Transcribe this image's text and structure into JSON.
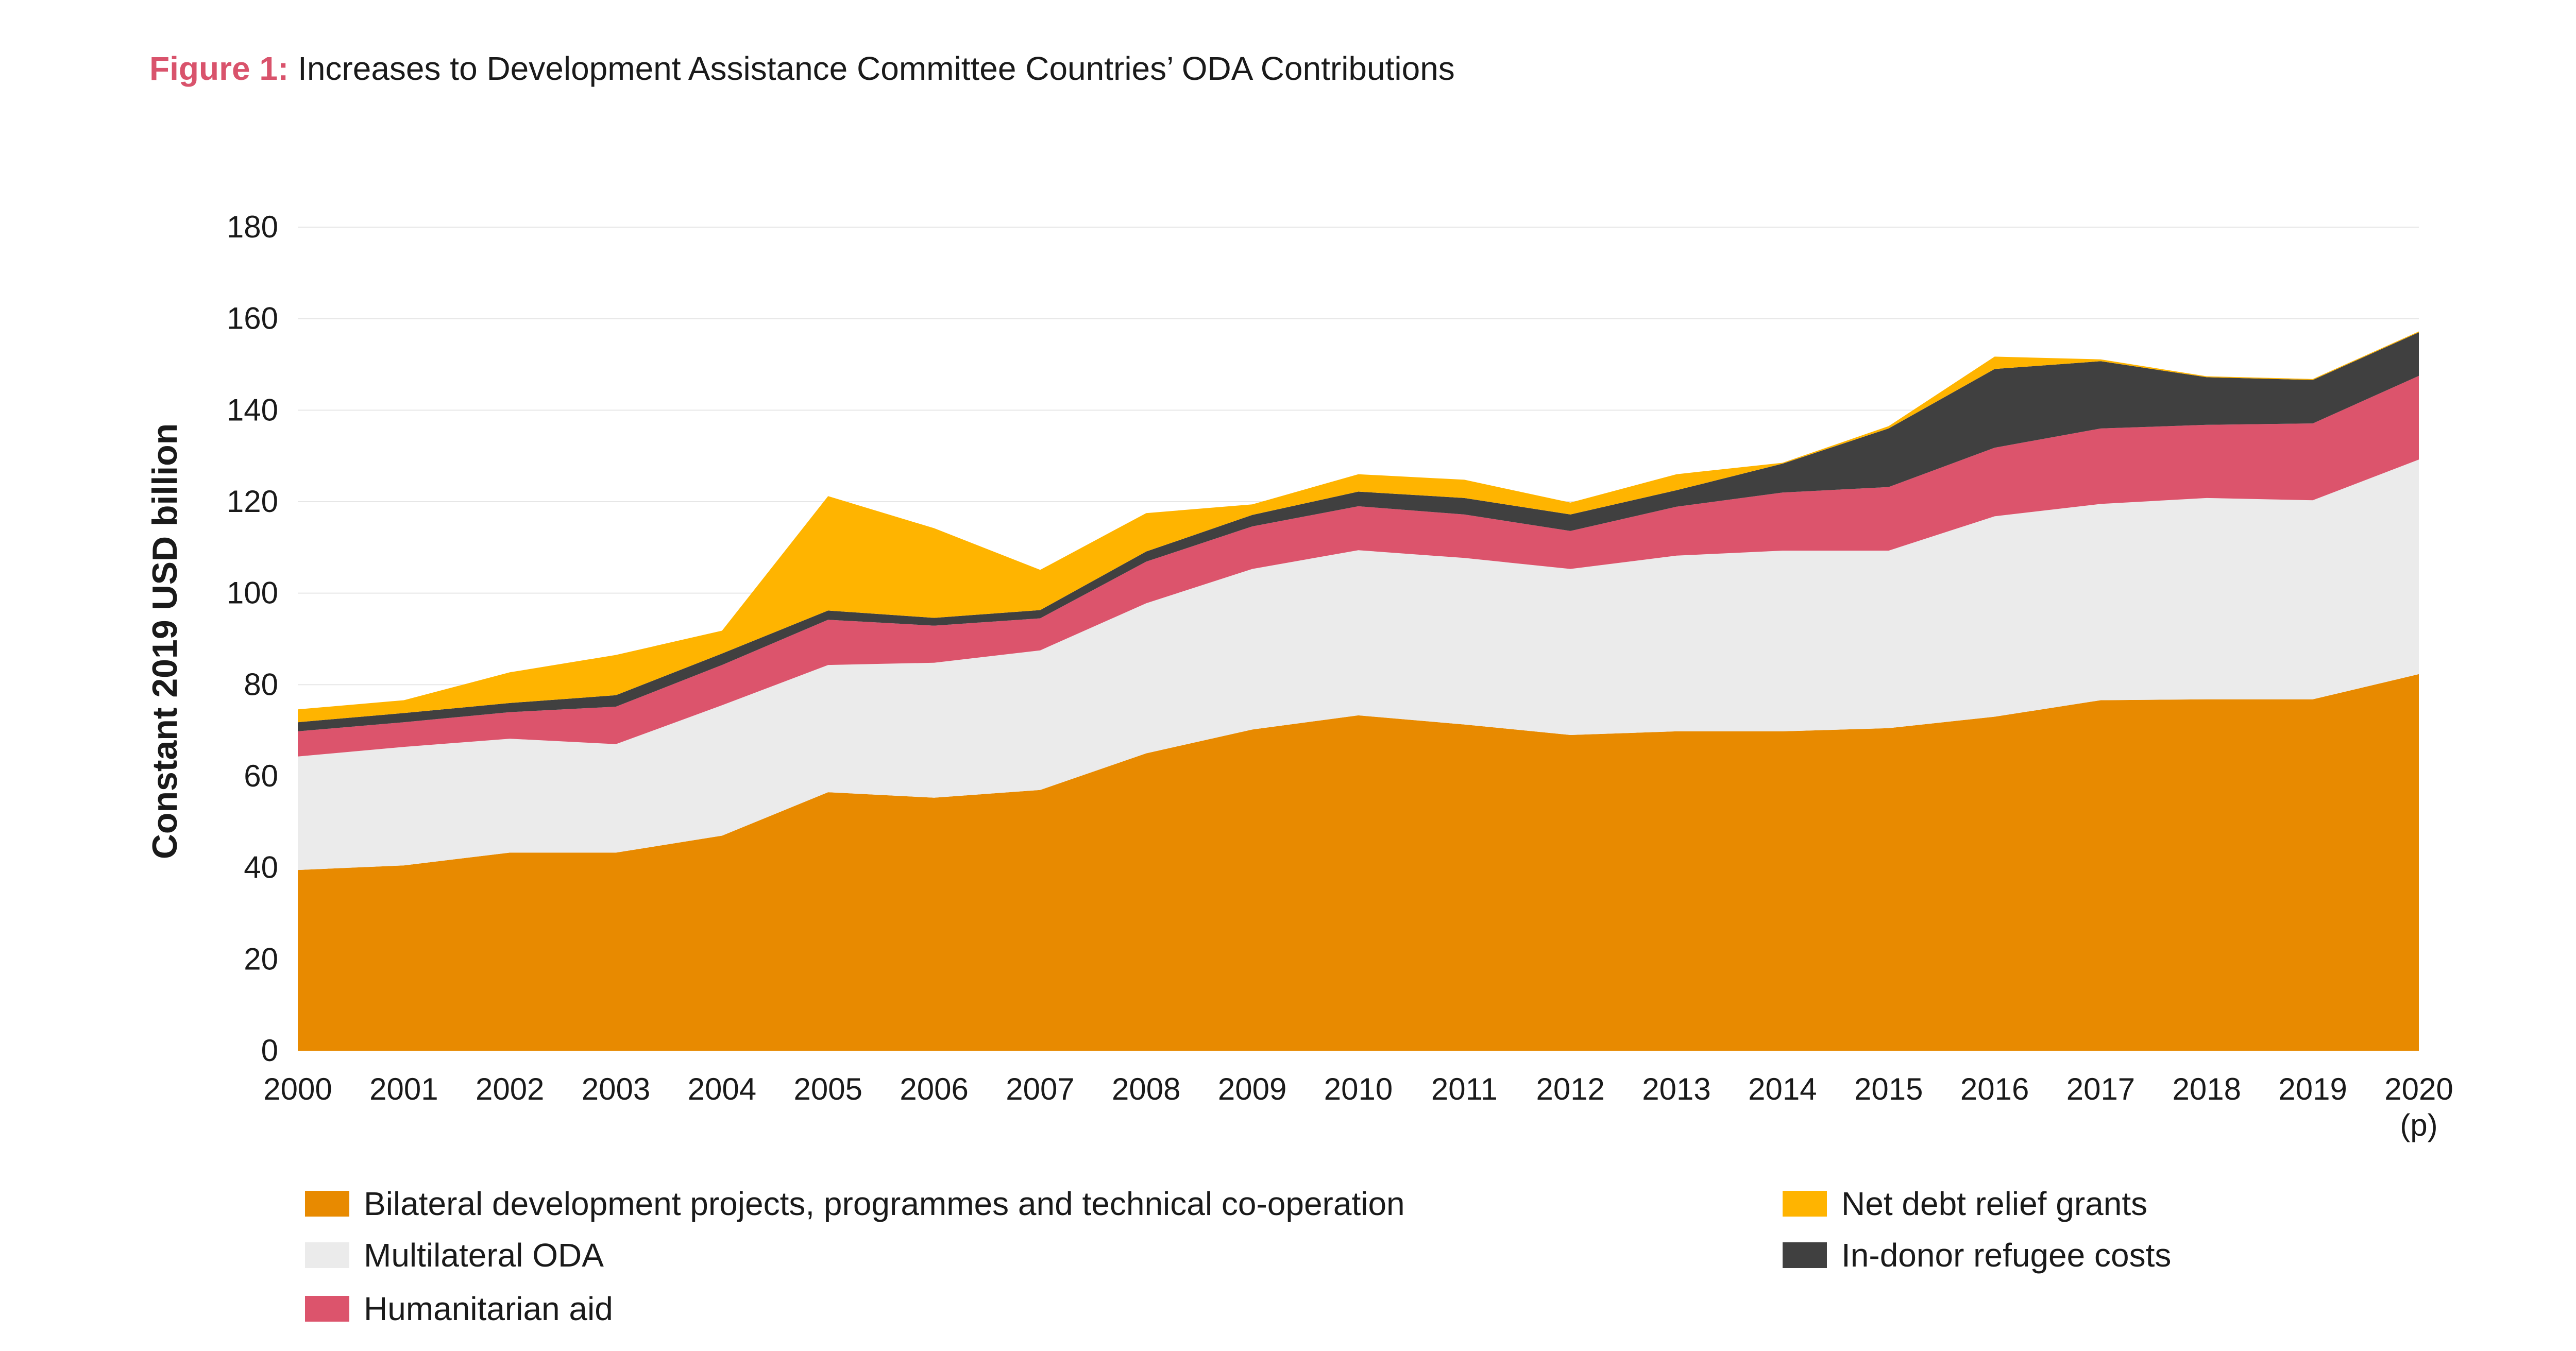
{
  "figure": {
    "label": "Figure 1:",
    "caption": "Increases to Development Assistance Committee Countries’ ODA Contributions"
  },
  "chart_data": {
    "type": "area",
    "stacked": true,
    "ylabel": "Constant 2019 USD billion",
    "xlabel": "",
    "ylim": [
      0,
      180
    ],
    "yticks": [
      0,
      20,
      40,
      60,
      80,
      100,
      120,
      140,
      160,
      180
    ],
    "grid": true,
    "categories": [
      "2000",
      "2001",
      "2002",
      "2003",
      "2004",
      "2005",
      "2006",
      "2007",
      "2008",
      "2009",
      "2010",
      "2011",
      "2012",
      "2013",
      "2014",
      "2015",
      "2016",
      "2017",
      "2018",
      "2019",
      "2020"
    ],
    "category_sublabels": {
      "2020": "(p)"
    },
    "series": [
      {
        "name": "Bilateral development projects, programmes and technical co-operation",
        "color": "#e88a00",
        "values": [
          39.5,
          40.5,
          43.3,
          43.3,
          47,
          56.5,
          55.3,
          57,
          65,
          70.2,
          73.3,
          71.3,
          69,
          69.8,
          69.8,
          70.5,
          73,
          76.6,
          76.8,
          76.8,
          82.3
        ]
      },
      {
        "name": "Multilateral ODA",
        "color": "#ebebeb",
        "values": [
          24.8,
          25.9,
          24.9,
          23.7,
          28.5,
          27.8,
          29.5,
          30.5,
          32.8,
          35.1,
          36.1,
          36.4,
          36.3,
          38.4,
          39.5,
          38.8,
          43.8,
          42.9,
          44,
          43.5,
          46.9
        ]
      },
      {
        "name": "Humanitarian aid",
        "color": "#dc546c",
        "values": [
          5.5,
          5.4,
          5.8,
          8.2,
          8.8,
          9.9,
          8.1,
          7.0,
          9.1,
          9.3,
          9.6,
          9.5,
          8.3,
          10.7,
          12.7,
          13.9,
          15.0,
          16.5,
          16.0,
          16.8,
          18.3
        ]
      },
      {
        "name": "In-donor refugee costs",
        "color": "#404040",
        "values": [
          2.0,
          2.0,
          2.0,
          2.5,
          2.5,
          2.0,
          1.7,
          1.8,
          2.2,
          2.5,
          3.2,
          3.6,
          3.6,
          3.6,
          6.3,
          12.8,
          17.2,
          14.7,
          10.4,
          9.5,
          9.5
        ]
      },
      {
        "name": "Net debt relief grants",
        "color": "#ffb400",
        "values": [
          2.8,
          2.8,
          6.7,
          8.8,
          5.0,
          25.0,
          19.6,
          8.8,
          8.4,
          2.3,
          3.8,
          4.0,
          2.6,
          3.5,
          0.2,
          0.5,
          2.7,
          0.4,
          0.2,
          0.2,
          0.2
        ]
      }
    ]
  },
  "legend": {
    "bilateral": "Bilateral development projects, programmes and technical co-operation",
    "multilateral": "Multilateral ODA",
    "humanitarian": "Humanitarian aid",
    "debt_relief": "Net debt relief grants",
    "refugee": "In-donor refugee costs"
  },
  "colors": {
    "accent": "#d9536c",
    "bilateral": "#e88a00",
    "multilateral": "#ebebeb",
    "humanitarian": "#dc546c",
    "refugee": "#404040",
    "debt_relief": "#ffb400"
  }
}
